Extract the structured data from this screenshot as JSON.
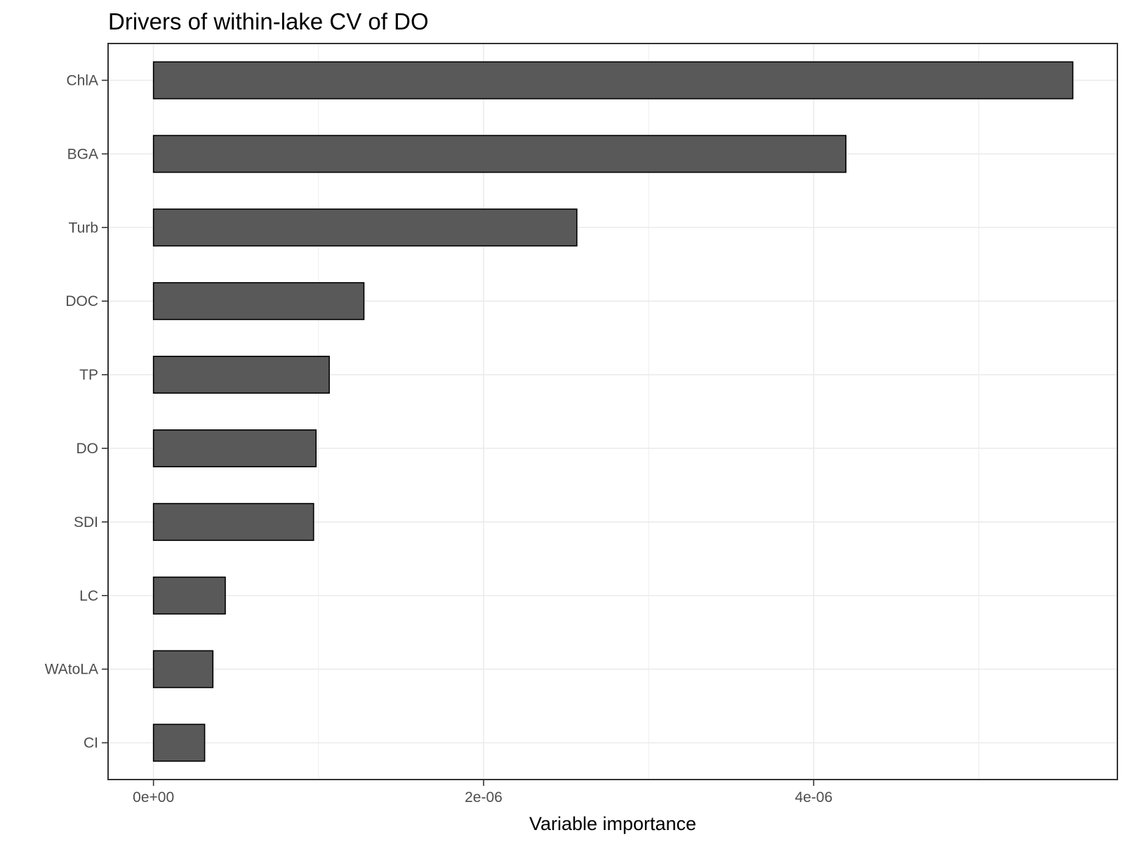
{
  "chart_data": {
    "type": "bar",
    "orientation": "horizontal",
    "title": "Drivers of within-lake CV of DO",
    "xlabel": "Variable importance",
    "ylabel": "",
    "categories": [
      "ChlA",
      "BGA",
      "Turb",
      "DOC",
      "TP",
      "DO",
      "SDI",
      "LC",
      "WAtoLA",
      "CI"
    ],
    "values": [
      5.57e-06,
      4.195e-06,
      2.565e-06,
      1.275e-06,
      1.065e-06,
      9.85e-07,
      9.7e-07,
      4.35e-07,
      3.6e-07,
      3.1e-07
    ],
    "xlim": [
      -2.75e-07,
      5.84e-06
    ],
    "xticks": [
      0,
      2e-06,
      4e-06
    ],
    "xtick_labels": [
      "0e+00",
      "2e-06",
      "4e-06"
    ],
    "grid": true,
    "legend": "none",
    "colors": {
      "bar_fill": "#595959",
      "bar_stroke": "#000000",
      "grid": "#ebebeb",
      "panel_border": "#333333"
    }
  }
}
